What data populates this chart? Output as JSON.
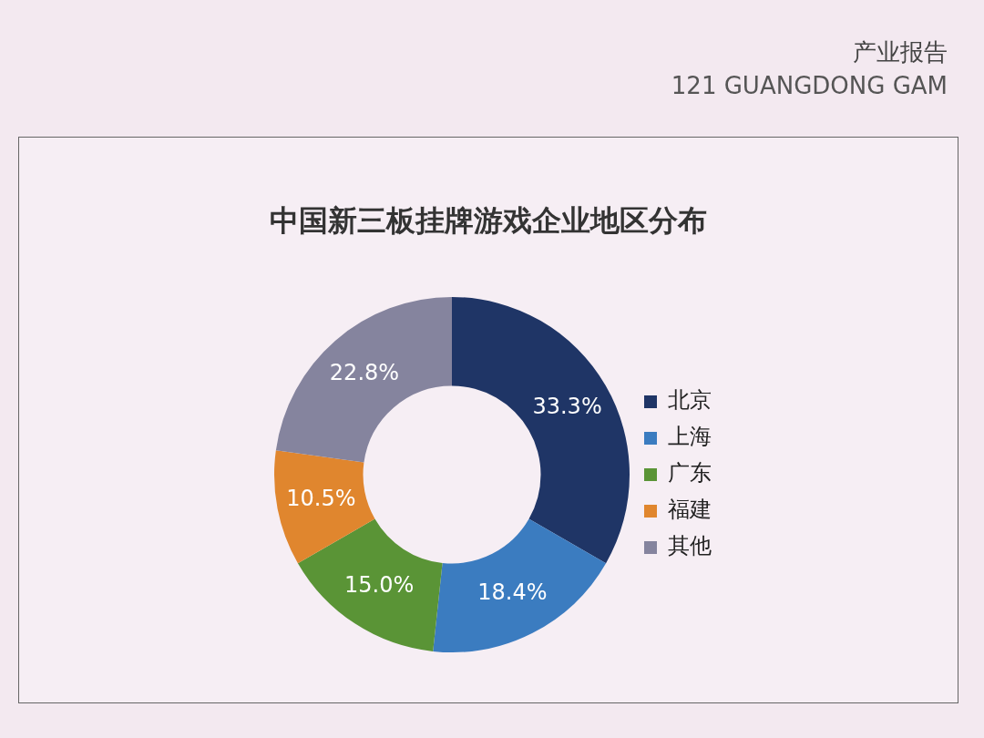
{
  "chart_data": {
    "type": "donut",
    "title": "中国新三板挂牌游戏企业地区分布",
    "categories": [
      "北京",
      "上海",
      "广东",
      "福建",
      "其他"
    ],
    "values": [
      33.3,
      18.4,
      15.0,
      10.5,
      22.8
    ],
    "value_labels": [
      "33.3%",
      "18.4%",
      "15.0%",
      "10.5%",
      "22.8%"
    ],
    "colors": [
      "#1f3566",
      "#3b7cc0",
      "#5a9436",
      "#e0862e",
      "#85849e"
    ],
    "legend": "right",
    "annotations": [
      "产业报告",
      "121 GUANGDONG GAM"
    ]
  }
}
